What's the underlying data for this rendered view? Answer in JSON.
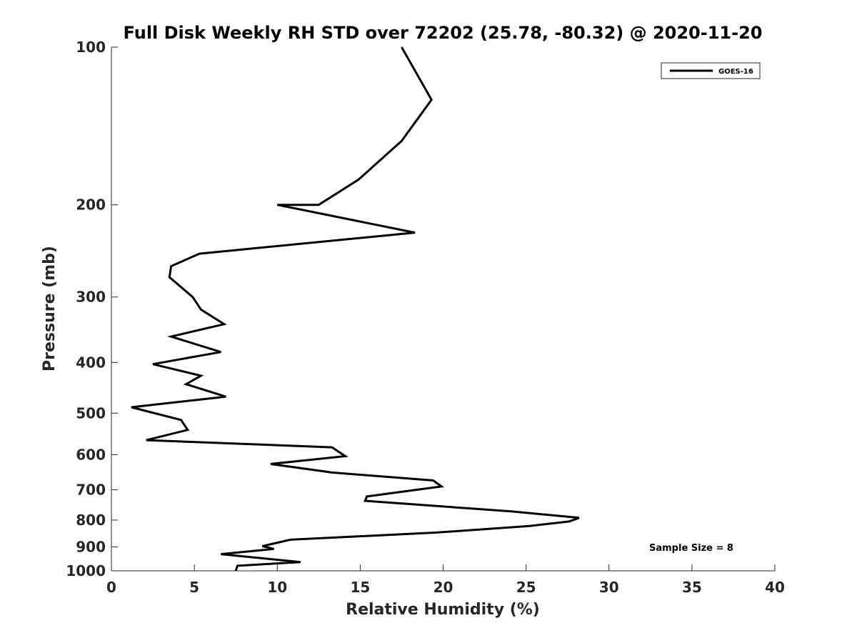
{
  "chart_data": {
    "type": "line",
    "title": "Full Disk Weekly RH STD over 72202 (25.78, -80.32) @ 2020-11-20",
    "xlabel": "Relative Humidity (%)",
    "ylabel": "Pressure (mb)",
    "xlim": [
      0,
      40
    ],
    "ylim": [
      100,
      1000
    ],
    "y_scale": "log",
    "y_reversed": true,
    "x_ticks": [
      0,
      5,
      10,
      15,
      20,
      25,
      30,
      35,
      40
    ],
    "y_ticks": [
      100,
      200,
      300,
      400,
      500,
      600,
      700,
      800,
      900,
      1000
    ],
    "grid": false,
    "legend_position": "top-right",
    "annotation": "Sample Size = 8",
    "series": [
      {
        "name": "GOES-16",
        "color": "#000000",
        "points": [
          [
            17.5,
            100
          ],
          [
            19.3,
            126
          ],
          [
            17.5,
            151
          ],
          [
            14.9,
            179
          ],
          [
            12.5,
            200
          ],
          [
            10.0,
            200
          ],
          [
            18.3,
            226
          ],
          [
            5.3,
            248
          ],
          [
            3.6,
            262
          ],
          [
            3.5,
            275
          ],
          [
            4.9,
            300
          ],
          [
            5.4,
            317
          ],
          [
            6.8,
            338
          ],
          [
            3.6,
            357
          ],
          [
            6.6,
            382
          ],
          [
            2.5,
            403
          ],
          [
            5.4,
            424
          ],
          [
            4.5,
            440
          ],
          [
            6.9,
            465
          ],
          [
            1.2,
            487
          ],
          [
            4.2,
            515
          ],
          [
            4.6,
            538
          ],
          [
            2.1,
            563
          ],
          [
            13.3,
            581
          ],
          [
            14.1,
            604
          ],
          [
            9.6,
            625
          ],
          [
            13.3,
            649
          ],
          [
            19.4,
            672
          ],
          [
            19.9,
            690
          ],
          [
            15.4,
            721
          ],
          [
            15.3,
            735
          ],
          [
            24.1,
            770
          ],
          [
            28.2,
            792
          ],
          [
            27.6,
            805
          ],
          [
            25.2,
            821
          ],
          [
            19.6,
            845
          ],
          [
            10.8,
            872
          ],
          [
            9.1,
            897
          ],
          [
            9.8,
            908
          ],
          [
            6.6,
            929
          ],
          [
            11.4,
            962
          ],
          [
            7.6,
            978
          ],
          [
            7.5,
            1000
          ]
        ]
      }
    ]
  }
}
